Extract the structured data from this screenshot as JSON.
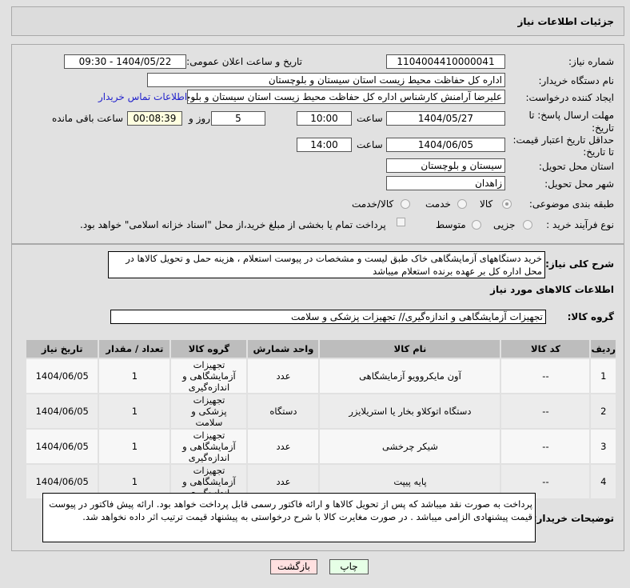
{
  "header": {
    "title": "جزئیات اطلاعات نیاز"
  },
  "form": {
    "need_number_label": "شماره نیاز:",
    "need_number": "1104004410000041",
    "announce_label": "تاریخ و ساعت اعلان عمومی:",
    "announce_value": "1404/05/22 - 09:30",
    "buyer_label": "نام دستگاه خریدار:",
    "buyer_value": "اداره کل حفاظت محیط زیست استان سیستان و بلوچستان",
    "creator_label": "ایجاد کننده درخواست:",
    "creator_value": "علیرضا آرامنش کارشناس اداره کل حفاظت محیط زیست استان سیستان و بلوچستان",
    "contact_link": "اطلاعات تماس خریدار",
    "deadline_label_1": "مهلت ارسال پاسخ: تا",
    "deadline_label_2": "تاریخ:",
    "deadline_date": "1404/05/27",
    "time_label": "ساعت",
    "deadline_time": "10:00",
    "days": "5",
    "days_label": "روز و",
    "remaining": "00:08:39",
    "remaining_label": "ساعت باقی مانده",
    "validity_label_1": "حداقل تاریخ اعتبار قیمت:",
    "validity_label_2": "تا تاریخ:",
    "validity_date": "1404/06/05",
    "validity_time": "14:00",
    "province_label": "استان محل تحویل:",
    "province": "سیستان و بلوچستان",
    "city_label": "شهر محل تحویل:",
    "city": "زاهدان",
    "category_label": "طبقه بندی موضوعی:",
    "category_options": [
      "کالا",
      "خدمت",
      "کالا/خدمت"
    ],
    "category_selected": "کالا",
    "process_label": "نوع فرآیند خرید :",
    "process_options": [
      "جزیی",
      "متوسط"
    ],
    "treasury_text": "پرداخت تمام یا بخشی از مبلغ خرید،از محل \"اسناد خزانه اسلامی\" خواهد بود."
  },
  "description": {
    "label": "شرح کلی نیاز:",
    "text": "خرید دستگاههای آزمایشگاهی خاک طبق لیست و مشخصات در پیوست استعلام ، هزینه حمل و تحویل کالاها در محل اداره کل بر عهده برنده استعلام میباشد"
  },
  "goods": {
    "heading": "اطلاعات کالاهای مورد نیاز",
    "group_label": "گروه کالا:",
    "group_value": "تجهیزات آزمایشگاهی و اندازه‌گیری// تجهیزات پزشکی و سلامت",
    "columns": [
      "ردیف",
      "کد کالا",
      "نام کالا",
      "واحد شمارش",
      "گروه کالا",
      "تعداد / مقدار",
      "تاریخ نیاز"
    ],
    "rows": [
      {
        "idx": "1",
        "code": "--",
        "name": "آون مایکروویو آزمایشگاهی",
        "unit": "عدد",
        "group": "تجهیزات آزمایشگاهی و اندازه‌گیری",
        "qty": "1",
        "date": "1404/06/05"
      },
      {
        "idx": "2",
        "code": "--",
        "name": "دستگاه اتوکلاو بخار یا استریلایزر",
        "unit": "دستگاه",
        "group": "تجهیزات پزشکی و سلامت",
        "qty": "1",
        "date": "1404/06/05"
      },
      {
        "idx": "3",
        "code": "--",
        "name": "شیکر چرخشی",
        "unit": "عدد",
        "group": "تجهیزات آزمایشگاهی و اندازه‌گیری",
        "qty": "1",
        "date": "1404/06/05"
      },
      {
        "idx": "4",
        "code": "--",
        "name": "پایه پیپت",
        "unit": "عدد",
        "group": "تجهیزات آزمایشگاهی و اندازه‌گیری",
        "qty": "1",
        "date": "1404/06/05"
      }
    ]
  },
  "buyer_notes": {
    "label": "توضیحات خریدار:",
    "text": "پرداخت به صورت نقد میباشد که پس از تحویل کالاها و ارائه فاکتور رسمی قابل پرداخت خواهد بود. ارائه پیش فاکتور در پیوست قیمت پیشنهادی الزامی میباشد . در صورت مغایرت کالا با شرح درخواستی به پیشنهاد قیمت ترتیب اثر داده نخواهد شد."
  },
  "buttons": {
    "print": "چاپ",
    "back": "بازگشت",
    "print_color": "#e6ffe6",
    "back_color": "#ffe0e0"
  }
}
